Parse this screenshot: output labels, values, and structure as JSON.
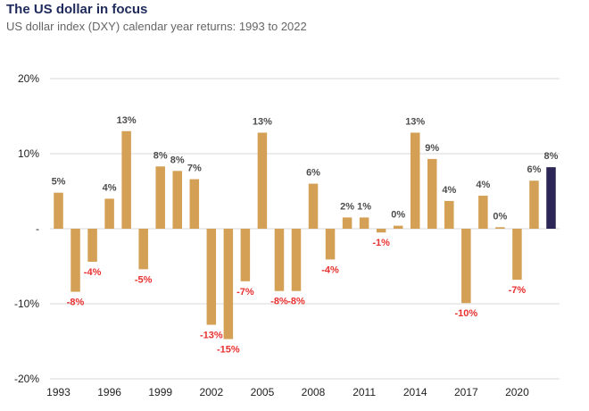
{
  "header": {
    "title": "The US dollar in focus",
    "subtitle": "US dollar index (DXY) calendar year returns: 1993 to 2022"
  },
  "chart_data": {
    "type": "bar",
    "title": "The US dollar in focus",
    "subtitle": "US dollar index (DXY) calendar year returns: 1993 to 2022",
    "categories": [
      "1993",
      "1994",
      "1995",
      "1996",
      "1997",
      "1998",
      "1999",
      "2000",
      "2001",
      "2002",
      "2003",
      "2004",
      "2005",
      "2006",
      "2007",
      "2008",
      "2009",
      "2010",
      "2011",
      "2012",
      "2013",
      "2014",
      "2015",
      "2016",
      "2017",
      "2018",
      "2019",
      "2020",
      "2021",
      "2022"
    ],
    "values": [
      4.8,
      -8.4,
      -4.4,
      4.0,
      13.0,
      -5.4,
      8.3,
      7.7,
      6.6,
      -12.8,
      -14.7,
      -7.0,
      12.8,
      -8.3,
      -8.3,
      6.0,
      -4.1,
      1.5,
      1.5,
      -0.5,
      0.4,
      12.8,
      9.3,
      3.7,
      -9.9,
      4.4,
      0.2,
      -6.8,
      6.4,
      8.2
    ],
    "data_labels": [
      "5%",
      "-8%",
      "-4%",
      "4%",
      "13%",
      "-5%",
      "8%",
      "8%",
      "7%",
      "-13%",
      "-15%",
      "-7%",
      "13%",
      "-8%",
      "-8%",
      "6%",
      "-4%",
      "2%",
      "1%",
      "-1%",
      "0%",
      "13%",
      "9%",
      "4%",
      "-10%",
      "4%",
      "0%",
      "-7%",
      "6%",
      "8%"
    ],
    "x_tick_labels": [
      "1993",
      "1996",
      "1999",
      "2002",
      "2005",
      "2008",
      "2011",
      "2014",
      "2017",
      "2020"
    ],
    "y_tick_labels": [
      "20%",
      "10%",
      "-",
      "-10%",
      "-20%"
    ],
    "y_ticks": [
      20,
      10,
      0,
      -10,
      -20
    ],
    "ylim": [
      -20,
      20
    ],
    "xlabel": "",
    "ylabel": "",
    "grid": true,
    "colors": {
      "bar": "#d4a055",
      "highlight_bar": "#2b2656",
      "positive_label": "#4d4d4d",
      "negative_label": "#e8312f",
      "grid": "#d9d9d9",
      "title": "#1f2a5c"
    },
    "highlight_category": "2022"
  }
}
